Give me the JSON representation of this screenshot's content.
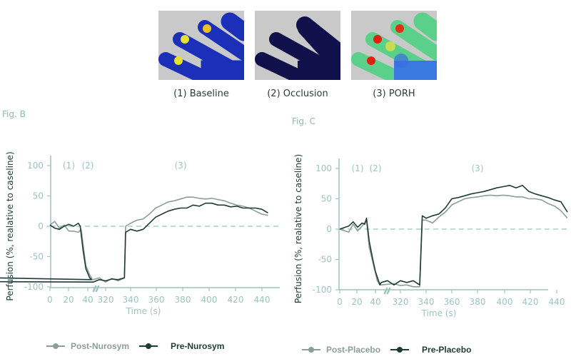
{
  "images": [
    {
      "caption": "(1) Baseline",
      "state": "baseline"
    },
    {
      "caption": "(2) Occlusion",
      "state": "occlusion"
    },
    {
      "caption": "(3) PORH",
      "state": "porh"
    }
  ],
  "colors": {
    "light": "#8a9e9b",
    "dark": "#1f3b36",
    "axis": "#9ec4bf",
    "zero": "#9ec4bf"
  },
  "chart_data": [
    {
      "type": "line",
      "figure_label": "Fig. B",
      "xlabel": "Time (s)",
      "ylabel": "Perfusion (%, realative to caseline)",
      "ylim": [
        -100,
        100
      ],
      "yticks": [
        100,
        50,
        0,
        -50,
        -100
      ],
      "xticks": [
        0,
        20,
        40,
        320,
        340,
        360,
        380,
        400,
        420,
        440
      ],
      "x_break": [
        45,
        305
      ],
      "phase_labels": [
        {
          "text": "(1)",
          "x": 20
        },
        {
          "text": "(2)",
          "x": 40
        },
        {
          "text": "(3)",
          "x": 380
        }
      ],
      "zero_line": "dashed",
      "series": [
        {
          "name": "Post-Nurosym",
          "color": "light",
          "x": [
            0,
            5,
            10,
            15,
            20,
            25,
            30,
            33,
            35,
            38,
            42,
            45,
            310,
            315,
            320,
            325,
            330,
            335,
            336,
            340,
            345,
            350,
            355,
            360,
            365,
            370,
            375,
            380,
            385,
            390,
            395,
            400,
            405,
            410,
            415,
            420,
            425,
            430,
            435,
            440,
            445,
            450
          ],
          "y": [
            2,
            8,
            -3,
            2,
            -8,
            -8,
            -10,
            -5,
            -30,
            -65,
            -80,
            -88,
            -88,
            -85,
            -92,
            -86,
            -90,
            -85,
            0,
            5,
            10,
            12,
            20,
            30,
            35,
            40,
            42,
            45,
            48,
            48,
            46,
            45,
            46,
            44,
            42,
            38,
            35,
            33,
            30,
            25,
            20,
            18
          ]
        },
        {
          "name": "Pre-Nurosym",
          "color": "dark",
          "x": [
            0,
            5,
            10,
            15,
            20,
            25,
            30,
            32,
            35,
            38,
            42,
            44,
            46,
            48,
            310,
            315,
            320,
            325,
            330,
            335,
            336,
            340,
            345,
            350,
            355,
            360,
            365,
            370,
            375,
            380,
            385,
            390,
            395,
            400,
            405,
            410,
            415,
            420,
            425,
            430,
            435,
            440,
            445,
            450
          ],
          "y": [
            2,
            -3,
            -5,
            0,
            3,
            0,
            5,
            0,
            -40,
            -70,
            -85,
            -88,
            -78,
            -90,
            -92,
            -88,
            -90,
            -87,
            -88,
            -85,
            -10,
            -5,
            -8,
            -5,
            5,
            15,
            20,
            25,
            28,
            30,
            30,
            35,
            33,
            38,
            38,
            35,
            35,
            32,
            33,
            30,
            30,
            30,
            28,
            22
          ]
        }
      ]
    },
    {
      "type": "line",
      "figure_label": "Fig. C",
      "xlabel": "Time (s)",
      "ylabel": "Perfusion (%, realative to caseline)",
      "ylim": [
        -100,
        100
      ],
      "yticks": [
        100,
        50,
        0,
        -50,
        -100
      ],
      "xticks": [
        0,
        20,
        40,
        320,
        340,
        360,
        380,
        400,
        420,
        440
      ],
      "x_break": [
        45,
        305
      ],
      "phase_labels": [
        {
          "text": "(1)",
          "x": 20
        },
        {
          "text": "(2)",
          "x": 40
        },
        {
          "text": "(3)",
          "x": 380
        }
      ],
      "zero_line": "dashed",
      "series": [
        {
          "name": "Post-Placebo",
          "color": "light",
          "x": [
            0,
            10,
            15,
            20,
            25,
            30,
            33,
            38,
            42,
            45,
            305,
            315,
            320,
            325,
            330,
            335,
            337,
            340,
            345,
            350,
            355,
            360,
            365,
            370,
            375,
            380,
            385,
            390,
            395,
            400,
            405,
            410,
            415,
            420,
            425,
            430,
            435,
            440,
            445,
            450
          ],
          "y": [
            0,
            -5,
            8,
            -3,
            5,
            15,
            -30,
            -60,
            -85,
            -92,
            -92,
            -90,
            -93,
            -92,
            -95,
            -95,
            15,
            15,
            10,
            20,
            28,
            40,
            45,
            50,
            52,
            53,
            55,
            56,
            55,
            56,
            55,
            53,
            53,
            50,
            50,
            48,
            42,
            38,
            30,
            18
          ]
        },
        {
          "name": "Pre-Placebo",
          "color": "dark",
          "x": [
            0,
            10,
            15,
            20,
            25,
            28,
            30,
            33,
            37,
            40,
            45,
            305,
            310,
            315,
            320,
            325,
            330,
            335,
            337,
            340,
            345,
            350,
            355,
            360,
            365,
            370,
            375,
            380,
            385,
            390,
            395,
            400,
            405,
            410,
            415,
            420,
            425,
            430,
            435,
            440,
            445,
            450
          ],
          "y": [
            0,
            5,
            12,
            3,
            10,
            8,
            18,
            -20,
            -50,
            -70,
            -92,
            -88,
            -85,
            -92,
            -85,
            -88,
            -85,
            -92,
            22,
            18,
            22,
            25,
            35,
            50,
            52,
            55,
            58,
            60,
            62,
            65,
            68,
            70,
            72,
            68,
            72,
            62,
            58,
            55,
            52,
            48,
            45,
            28
          ]
        }
      ]
    }
  ]
}
